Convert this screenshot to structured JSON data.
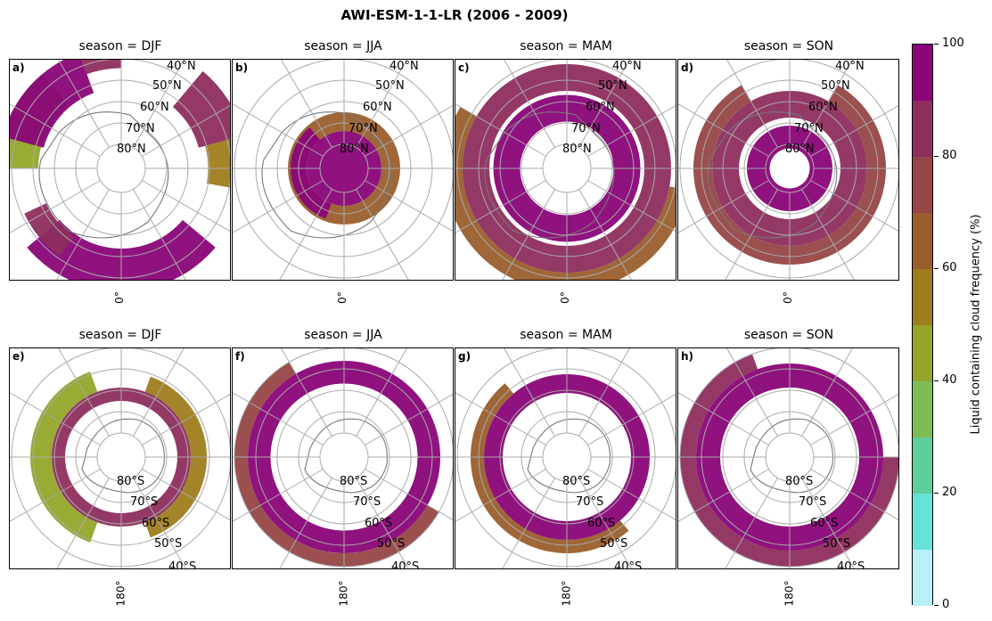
{
  "title": "AWI-ESM-1-1-LR (2006 - 2009)",
  "chart_data": {
    "type": "heatmap",
    "description_units": "Liquid containing cloud frequency (%)",
    "panels": [
      {
        "label": "a)",
        "title": "season = DJF",
        "hemisphere": "north",
        "lon_label": "0°",
        "lat_labels": [
          "40°N",
          "50°N",
          "60°N",
          "70°N",
          "80°N"
        ],
        "bands": [
          {
            "r_in": 0.6,
            "r_out": 0.92,
            "a_start": 130,
            "a_end": 230,
            "v": 90
          },
          {
            "r_in": 0.6,
            "r_out": 0.95,
            "a_start": 40,
            "a_end": 75,
            "v": 85
          },
          {
            "r_in": 0.65,
            "r_out": 0.95,
            "a_start": 75,
            "a_end": 100,
            "v": 55
          },
          {
            "r_in": 0.62,
            "r_out": 0.92,
            "a_start": 270,
            "a_end": 320,
            "v": 45
          },
          {
            "r_in": 0.6,
            "r_out": 0.92,
            "a_start": 285,
            "a_end": 340,
            "v": 92
          },
          {
            "r_in": 0.62,
            "r_out": 0.8,
            "a_start": 215,
            "a_end": 245,
            "v": 80
          },
          {
            "r_in": 0.75,
            "r_out": 0.9,
            "a_start": 340,
            "a_end": 360,
            "v": 88
          }
        ]
      },
      {
        "label": "b)",
        "title": "season = JJA",
        "hemisphere": "north",
        "lon_label": "0°",
        "lat_labels": [
          "40°N",
          "50°N",
          "60°N",
          "70°N",
          "80°N"
        ],
        "bands": [
          {
            "r_in": 0.0,
            "r_out": 0.28,
            "a_start": 0,
            "a_end": 360,
            "v": 95
          },
          {
            "r_in": 0.28,
            "r_out": 0.42,
            "a_start": 0,
            "a_end": 360,
            "v": 65
          },
          {
            "r_in": 0.28,
            "r_out": 0.4,
            "a_start": 200,
            "a_end": 320,
            "v": 90
          }
        ]
      },
      {
        "label": "c)",
        "title": "season = MAM",
        "hemisphere": "north",
        "lon_label": "0°",
        "lat_labels": [
          "40°N",
          "50°N",
          "60°N",
          "70°N",
          "80°N"
        ],
        "bands": [
          {
            "r_in": 0.35,
            "r_out": 0.55,
            "a_start": 0,
            "a_end": 360,
            "v": 92
          },
          {
            "r_in": 0.58,
            "r_out": 0.78,
            "a_start": 0,
            "a_end": 360,
            "v": 85
          },
          {
            "r_in": 0.78,
            "r_out": 0.92,
            "a_start": 100,
            "a_end": 300,
            "v": 60
          }
        ]
      },
      {
        "label": "d)",
        "title": "season = SON",
        "hemisphere": "north",
        "lon_label": "0°",
        "lat_labels": [
          "40°N",
          "50°N",
          "60°N",
          "70°N",
          "80°N"
        ],
        "bands": [
          {
            "r_in": 0.15,
            "r_out": 0.32,
            "a_start": 0,
            "a_end": 360,
            "v": 95
          },
          {
            "r_in": 0.38,
            "r_out": 0.58,
            "a_start": 0,
            "a_end": 360,
            "v": 85
          },
          {
            "r_in": 0.58,
            "r_out": 0.72,
            "a_start": 30,
            "a_end": 330,
            "v": 78
          }
        ]
      },
      {
        "label": "e)",
        "title": "season = DJF",
        "hemisphere": "south",
        "lon_label": "180°",
        "lat_labels": [
          "80°S",
          "70°S",
          "60°S",
          "50°S",
          "40°S"
        ],
        "bands": [
          {
            "r_in": 0.42,
            "r_out": 0.52,
            "a_start": 0,
            "a_end": 360,
            "v": 88
          },
          {
            "r_in": 0.52,
            "r_out": 0.68,
            "a_start": 200,
            "a_end": 340,
            "v": 42
          },
          {
            "r_in": 0.52,
            "r_out": 0.64,
            "a_start": 20,
            "a_end": 160,
            "v": 55
          }
        ]
      },
      {
        "label": "f)",
        "title": "season = JJA",
        "hemisphere": "south",
        "lon_label": "180°",
        "lat_labels": [
          "80°S",
          "70°S",
          "60°S",
          "50°S",
          "40°S"
        ],
        "bands": [
          {
            "r_in": 0.55,
            "r_out": 0.72,
            "a_start": 0,
            "a_end": 360,
            "v": 95
          },
          {
            "r_in": 0.72,
            "r_out": 0.82,
            "a_start": 120,
            "a_end": 330,
            "v": 70
          }
        ]
      },
      {
        "label": "g)",
        "title": "season = MAM",
        "hemisphere": "south",
        "lon_label": "180°",
        "lat_labels": [
          "80°S",
          "70°S",
          "60°S",
          "50°S",
          "40°S"
        ],
        "bands": [
          {
            "r_in": 0.48,
            "r_out": 0.62,
            "a_start": 0,
            "a_end": 360,
            "v": 90
          },
          {
            "r_in": 0.62,
            "r_out": 0.72,
            "a_start": 140,
            "a_end": 320,
            "v": 65
          }
        ]
      },
      {
        "label": "h)",
        "title": "season = SON",
        "hemisphere": "south",
        "lon_label": "180°",
        "lat_labels": [
          "80°S",
          "70°S",
          "60°S",
          "50°S",
          "40°S"
        ],
        "bands": [
          {
            "r_in": 0.52,
            "r_out": 0.7,
            "a_start": 0,
            "a_end": 360,
            "v": 96
          },
          {
            "r_in": 0.7,
            "r_out": 0.82,
            "a_start": 90,
            "a_end": 340,
            "v": 85
          }
        ]
      }
    ],
    "colorbar": {
      "label": "Liquid containing cloud frequency (%)",
      "ticks": [
        "0",
        "20",
        "40",
        "60",
        "80",
        "100"
      ],
      "range": [
        0,
        100
      ],
      "colors": [
        "#b8f0f8",
        "#66e3d8",
        "#5ecf98",
        "#7ebd56",
        "#94a52a",
        "#9e7d1c",
        "#9a5e2c",
        "#964646",
        "#8e2e5e",
        "#8a0578"
      ]
    }
  }
}
